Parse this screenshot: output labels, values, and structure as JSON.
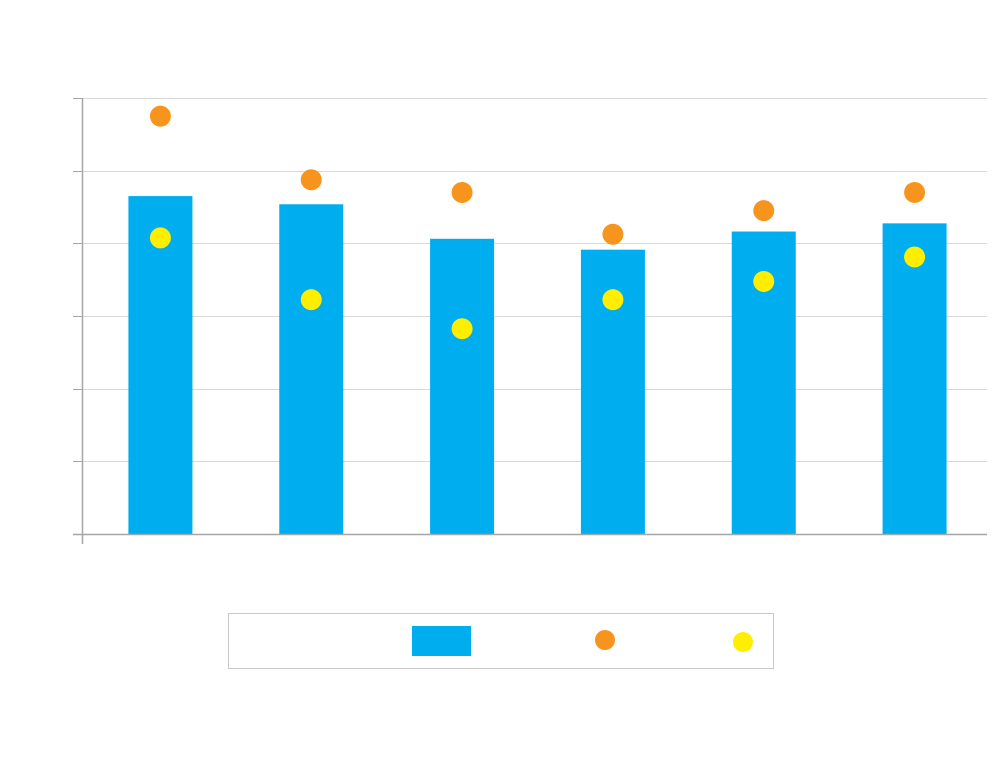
{
  "colors": {
    "bar": "#00adef",
    "series_orange": "#f7941d",
    "series_yellow": "#ffee00",
    "grid": "#d9d9d9",
    "axis": "#a6a6a6"
  },
  "chart_data": {
    "type": "bar",
    "title": "",
    "xlabel": "",
    "ylabel": "",
    "categories": [
      "",
      "",
      "",
      "",
      "",
      ""
    ],
    "ylim": [
      0,
      4.8
    ],
    "grid": true,
    "legend_position": "bottom",
    "series": [
      {
        "name": "",
        "kind": "bar",
        "color": "#00adef",
        "values": [
          3.72,
          3.63,
          3.25,
          3.13,
          3.33,
          3.42
        ]
      },
      {
        "name": "",
        "kind": "dot",
        "color": "#f7941d",
        "values": [
          4.6,
          3.9,
          3.76,
          3.3,
          3.56,
          3.76
        ]
      },
      {
        "name": "",
        "kind": "dot",
        "color": "#ffee00",
        "values": [
          3.26,
          2.58,
          2.26,
          2.58,
          2.78,
          3.05
        ]
      }
    ]
  }
}
